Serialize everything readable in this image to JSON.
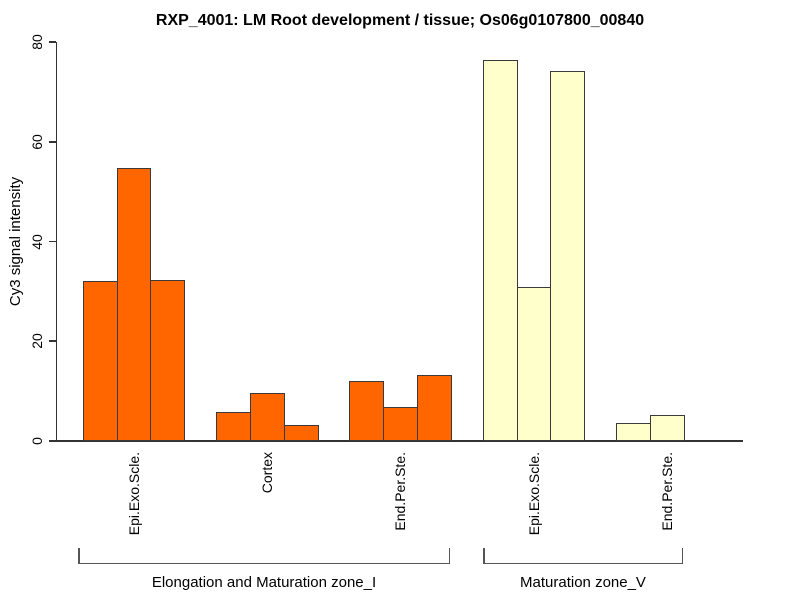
{
  "chart_data": {
    "type": "bar",
    "title": "RXP_4001: LM Root development / tissue; Os06g0107800_00840",
    "xlabel": "",
    "ylabel": "Cy3 signal intensity",
    "ylim": [
      0,
      80
    ],
    "yticks": [
      0,
      20,
      40,
      60,
      80
    ],
    "grid": false,
    "legend": null,
    "groups": [
      {
        "tissue": "Epi.Exo.Scle.",
        "zone": "Elongation and Maturation zone_I",
        "color": "#FF6600",
        "values": [
          32.0,
          54.7,
          32.2
        ]
      },
      {
        "tissue": "Cortex",
        "zone": "Elongation and Maturation zone_I",
        "color": "#FF6600",
        "values": [
          5.8,
          9.6,
          3.3
        ]
      },
      {
        "tissue": "End.Per.Ste.",
        "zone": "Elongation and Maturation zone_I",
        "color": "#FF6600",
        "values": [
          12.1,
          6.8,
          13.2
        ]
      },
      {
        "tissue": "Epi.Exo.Scle.",
        "zone": "Maturation zone_V",
        "color": "#FFFFCC",
        "values": [
          76.3,
          30.8,
          74.1
        ]
      },
      {
        "tissue": "End.Per.Ste.",
        "zone": "Maturation zone_V",
        "color": "#FFFFCC",
        "values": [
          3.6,
          5.2
        ]
      }
    ],
    "zone_brackets": [
      {
        "label": "Elongation and Maturation zone_I"
      },
      {
        "label": "Maturation zone_V"
      }
    ],
    "colors": {
      "orange_bars": "#FF6600",
      "yellow_bars": "#FFFFCC",
      "bar_border": "#3A3A3A",
      "axis": "#333333",
      "bracket": "#555555",
      "text": "#000000",
      "background": "#FFFFFF"
    }
  }
}
